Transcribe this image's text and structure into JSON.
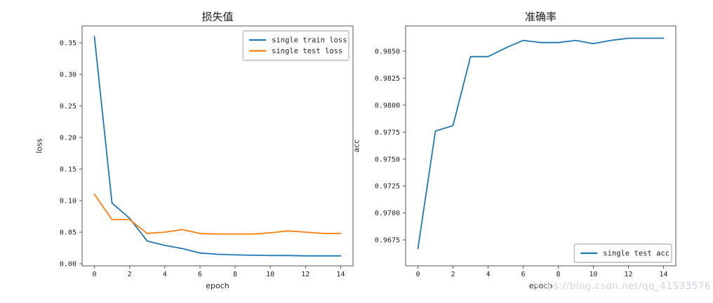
{
  "figure": {
    "background": "#ffffff",
    "axis_color": "#555555",
    "tick_text_color": "#1f1f1f"
  },
  "watermark": {
    "text": "https://blog.csdn.net/qq_41533576",
    "color": "#ccd4e1"
  },
  "chart_data": [
    {
      "type": "line",
      "title": "损失值",
      "xlabel": "epoch",
      "ylabel": "loss",
      "grid": false,
      "x": [
        0,
        1,
        2,
        3,
        4,
        5,
        6,
        7,
        8,
        9,
        10,
        11,
        12,
        13,
        14
      ],
      "xticks": [
        0,
        2,
        4,
        6,
        8,
        10,
        12,
        14
      ],
      "yticks": [
        0.0,
        0.05,
        0.1,
        0.15,
        0.2,
        0.25,
        0.3,
        0.35
      ],
      "ytick_labels": [
        "0.00",
        "0.05",
        "0.10",
        "0.15",
        "0.20",
        "0.25",
        "0.30",
        "0.35"
      ],
      "xlim": [
        -0.7,
        14.7
      ],
      "ylim": [
        -0.0033,
        0.3767
      ],
      "legend": {
        "position": "upper right",
        "entries": [
          "single train loss",
          "single test loss"
        ]
      },
      "series": [
        {
          "name": "single train loss",
          "color": "#1f77b4",
          "values": [
            0.36,
            0.096,
            0.072,
            0.036,
            0.029,
            0.024,
            0.017,
            0.015,
            0.014,
            0.0135,
            0.013,
            0.013,
            0.0125,
            0.0125,
            0.0125
          ]
        },
        {
          "name": "single test loss",
          "color": "#ff7f0e",
          "values": [
            0.11,
            0.07,
            0.07,
            0.048,
            0.05,
            0.054,
            0.048,
            0.047,
            0.047,
            0.047,
            0.049,
            0.052,
            0.05,
            0.048,
            0.048
          ]
        }
      ]
    },
    {
      "type": "line",
      "title": "准确率",
      "xlabel": "epoch",
      "ylabel": "acc",
      "grid": false,
      "x": [
        0,
        1,
        2,
        3,
        4,
        5,
        6,
        7,
        8,
        9,
        10,
        11,
        12,
        13,
        14
      ],
      "xticks": [
        0,
        2,
        4,
        6,
        8,
        10,
        12,
        14
      ],
      "yticks": [
        0.9675,
        0.97,
        0.9725,
        0.975,
        0.9775,
        0.98,
        0.9825,
        0.985
      ],
      "ytick_labels": [
        "0.9675",
        "0.9700",
        "0.9725",
        "0.9750",
        "0.9775",
        "0.9800",
        "0.9825",
        "0.9850"
      ],
      "xlim": [
        -0.7,
        14.7
      ],
      "ylim": [
        0.9651,
        0.98734
      ],
      "legend": {
        "position": "lower right",
        "entries": [
          "single test acc"
        ]
      },
      "series": [
        {
          "name": "single test acc",
          "color": "#1f77b4",
          "values": [
            0.9667,
            0.9776,
            0.9781,
            0.9845,
            0.9845,
            0.9853,
            0.986,
            0.9858,
            0.9858,
            0.986,
            0.9857,
            0.986,
            0.9862,
            0.9862,
            0.9862
          ]
        }
      ]
    }
  ]
}
